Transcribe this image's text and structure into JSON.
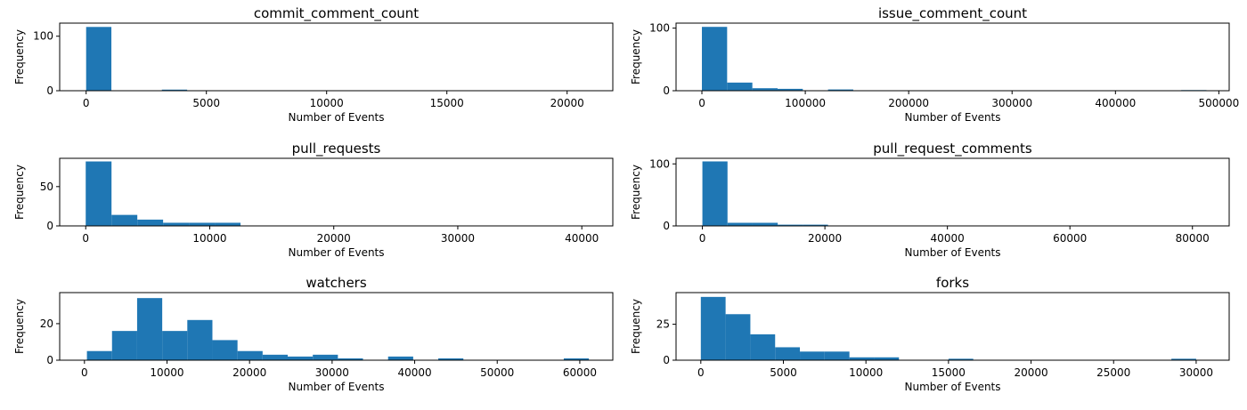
{
  "colors": {
    "bar": "#1f77b4",
    "background": "#ffffff",
    "axis": "#000000"
  },
  "chart_data": [
    {
      "type": "bar",
      "title": "commit_comment_count",
      "xlabel": "Number of Events",
      "ylabel": "Frequency",
      "xlim": [
        -1100,
        21900
      ],
      "ylim": [
        0,
        124
      ],
      "xticks": [
        0,
        5000,
        10000,
        15000,
        20000
      ],
      "yticks": [
        0,
        100
      ],
      "bins": [
        {
          "x0": 0,
          "x1": 1050,
          "count": 117
        },
        {
          "x0": 3150,
          "x1": 4200,
          "count": 2
        }
      ]
    },
    {
      "type": "bar",
      "title": "issue_comment_count",
      "xlabel": "Number of Events",
      "ylabel": "Frequency",
      "xlim": [
        -25000,
        510000
      ],
      "ylim": [
        0,
        108
      ],
      "xticks": [
        0,
        100000,
        200000,
        300000,
        400000,
        500000
      ],
      "yticks": [
        0,
        100
      ],
      "bins": [
        {
          "x0": 0,
          "x1": 24400,
          "count": 102
        },
        {
          "x0": 24400,
          "x1": 48800,
          "count": 13
        },
        {
          "x0": 48800,
          "x1": 73200,
          "count": 4
        },
        {
          "x0": 73200,
          "x1": 97600,
          "count": 3
        },
        {
          "x0": 122000,
          "x1": 146400,
          "count": 2
        },
        {
          "x0": 463600,
          "x1": 488000,
          "count": 1
        }
      ]
    },
    {
      "type": "bar",
      "title": "pull_requests",
      "xlabel": "Number of Events",
      "ylabel": "Frequency",
      "xlim": [
        -2100,
        42500
      ],
      "ylim": [
        0,
        86
      ],
      "xticks": [
        0,
        10000,
        20000,
        30000,
        40000
      ],
      "yticks": [
        0,
        50
      ],
      "bins": [
        {
          "x0": 0,
          "x1": 2080,
          "count": 82
        },
        {
          "x0": 2080,
          "x1": 4160,
          "count": 14
        },
        {
          "x0": 4160,
          "x1": 6240,
          "count": 8
        },
        {
          "x0": 6240,
          "x1": 8320,
          "count": 4
        },
        {
          "x0": 8320,
          "x1": 10400,
          "count": 4
        },
        {
          "x0": 10400,
          "x1": 12480,
          "count": 4
        }
      ]
    },
    {
      "type": "bar",
      "title": "pull_request_comments",
      "xlabel": "Number of Events",
      "ylabel": "Frequency",
      "xlim": [
        -4300,
        86000
      ],
      "ylim": [
        0,
        109
      ],
      "xticks": [
        0,
        20000,
        40000,
        60000,
        80000
      ],
      "yticks": [
        0,
        100
      ],
      "bins": [
        {
          "x0": 0,
          "x1": 4100,
          "count": 104
        },
        {
          "x0": 4100,
          "x1": 8200,
          "count": 5
        },
        {
          "x0": 8200,
          "x1": 12300,
          "count": 5
        },
        {
          "x0": 12300,
          "x1": 16400,
          "count": 2
        },
        {
          "x0": 16400,
          "x1": 20500,
          "count": 2
        }
      ]
    },
    {
      "type": "bar",
      "title": "watchers",
      "xlabel": "Number of Events",
      "ylabel": "Frequency",
      "xlim": [
        -3000,
        64000
      ],
      "ylim": [
        0,
        37
      ],
      "xticks": [
        0,
        10000,
        20000,
        30000,
        40000,
        50000,
        60000
      ],
      "yticks": [
        0,
        20
      ],
      "bins": [
        {
          "x0": 300,
          "x1": 3340,
          "count": 5
        },
        {
          "x0": 3340,
          "x1": 6380,
          "count": 16
        },
        {
          "x0": 6380,
          "x1": 9420,
          "count": 34
        },
        {
          "x0": 9420,
          "x1": 12460,
          "count": 16
        },
        {
          "x0": 12460,
          "x1": 15500,
          "count": 22
        },
        {
          "x0": 15500,
          "x1": 18540,
          "count": 11
        },
        {
          "x0": 18540,
          "x1": 21580,
          "count": 5
        },
        {
          "x0": 21580,
          "x1": 24620,
          "count": 3
        },
        {
          "x0": 24620,
          "x1": 27660,
          "count": 2
        },
        {
          "x0": 27660,
          "x1": 30700,
          "count": 3
        },
        {
          "x0": 30700,
          "x1": 33740,
          "count": 1
        },
        {
          "x0": 36780,
          "x1": 39820,
          "count": 2
        },
        {
          "x0": 42860,
          "x1": 45900,
          "count": 1
        },
        {
          "x0": 58060,
          "x1": 61100,
          "count": 1
        }
      ]
    },
    {
      "type": "bar",
      "title": "forks",
      "xlabel": "Number of Events",
      "ylabel": "Frequency",
      "xlim": [
        -1500,
        32000
      ],
      "ylim": [
        0,
        47
      ],
      "xticks": [
        0,
        5000,
        10000,
        15000,
        20000,
        25000,
        30000
      ],
      "yticks": [
        0,
        25
      ],
      "bins": [
        {
          "x0": 0,
          "x1": 1500,
          "count": 44
        },
        {
          "x0": 1500,
          "x1": 3000,
          "count": 32
        },
        {
          "x0": 3000,
          "x1": 4500,
          "count": 18
        },
        {
          "x0": 4500,
          "x1": 6000,
          "count": 9
        },
        {
          "x0": 6000,
          "x1": 7500,
          "count": 6
        },
        {
          "x0": 7500,
          "x1": 9000,
          "count": 6
        },
        {
          "x0": 9000,
          "x1": 10500,
          "count": 2
        },
        {
          "x0": 10500,
          "x1": 12000,
          "count": 2
        },
        {
          "x0": 15000,
          "x1": 16500,
          "count": 1
        },
        {
          "x0": 28500,
          "x1": 30000,
          "count": 1
        }
      ]
    }
  ]
}
